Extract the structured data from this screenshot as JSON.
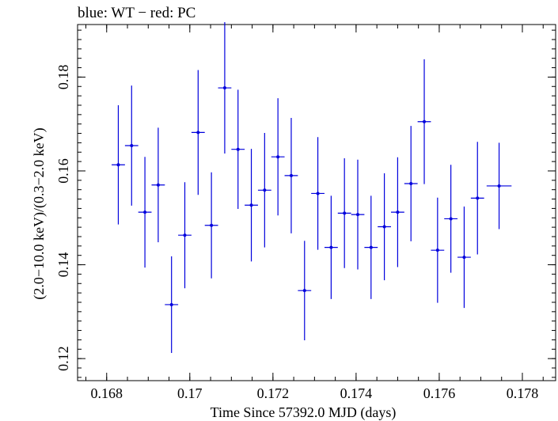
{
  "chart_data": {
    "type": "scatter",
    "title": "blue: WT − red: PC",
    "xlabel": "Time Since 57392.0 MJD (days)",
    "ylabel": "(2.0−10.0 keV)/(0.3−2.0 keV)",
    "xlim": [
      0.1673,
      0.1788
    ],
    "ylim": [
      0.1153,
      0.1912
    ],
    "xticks": [
      0.168,
      0.17,
      0.172,
      0.174,
      0.176,
      0.178
    ],
    "xtick_labels": [
      "0.168",
      "0.17",
      "0.172",
      "0.174",
      "0.176",
      "0.178"
    ],
    "yticks": [
      0.12,
      0.14,
      0.16,
      0.18
    ],
    "ytick_labels": [
      "0.12",
      "0.14",
      "0.16",
      "0.18"
    ],
    "grid": false,
    "series": [
      {
        "color": "#0000dd",
        "x": [
          0.16828,
          0.1686,
          0.16892,
          0.16924,
          0.16956,
          0.16988,
          0.1702,
          0.17052,
          0.17084,
          0.17116,
          0.17148,
          0.1718,
          0.17212,
          0.17244,
          0.17276,
          0.17308,
          0.1734,
          0.17372,
          0.17404,
          0.17436,
          0.17468,
          0.175,
          0.17532,
          0.17564,
          0.17596,
          0.17628,
          0.1766,
          0.17692,
          0.17744
        ],
        "xerr": [
          0.00016,
          0.00016,
          0.00016,
          0.00016,
          0.00016,
          0.00016,
          0.00016,
          0.00016,
          0.00016,
          0.00016,
          0.00016,
          0.00016,
          0.00016,
          0.00016,
          0.00016,
          0.00016,
          0.00016,
          0.00016,
          0.00016,
          0.00016,
          0.00016,
          0.00016,
          0.00016,
          0.00016,
          0.00016,
          0.00016,
          0.00016,
          0.00016,
          0.0003
        ],
        "y": [
          0.1613,
          0.1654,
          0.1512,
          0.157,
          0.1315,
          0.1463,
          0.1682,
          0.1484,
          0.1777,
          0.1646,
          0.1527,
          0.1559,
          0.163,
          0.159,
          0.1345,
          0.1552,
          0.1437,
          0.151,
          0.1507,
          0.1437,
          0.1481,
          0.1512,
          0.1573,
          0.1705,
          0.1431,
          0.1498,
          0.1416,
          0.1542,
          0.1568
        ],
        "yerr": [
          0.0127,
          0.0128,
          0.0118,
          0.0122,
          0.0103,
          0.0113,
          0.0133,
          0.0113,
          0.014,
          0.0127,
          0.012,
          0.0122,
          0.0125,
          0.0123,
          0.0106,
          0.012,
          0.011,
          0.0117,
          0.0117,
          0.011,
          0.0114,
          0.0117,
          0.0123,
          0.0133,
          0.0112,
          0.0115,
          0.0108,
          0.012,
          0.0092
        ]
      }
    ]
  }
}
